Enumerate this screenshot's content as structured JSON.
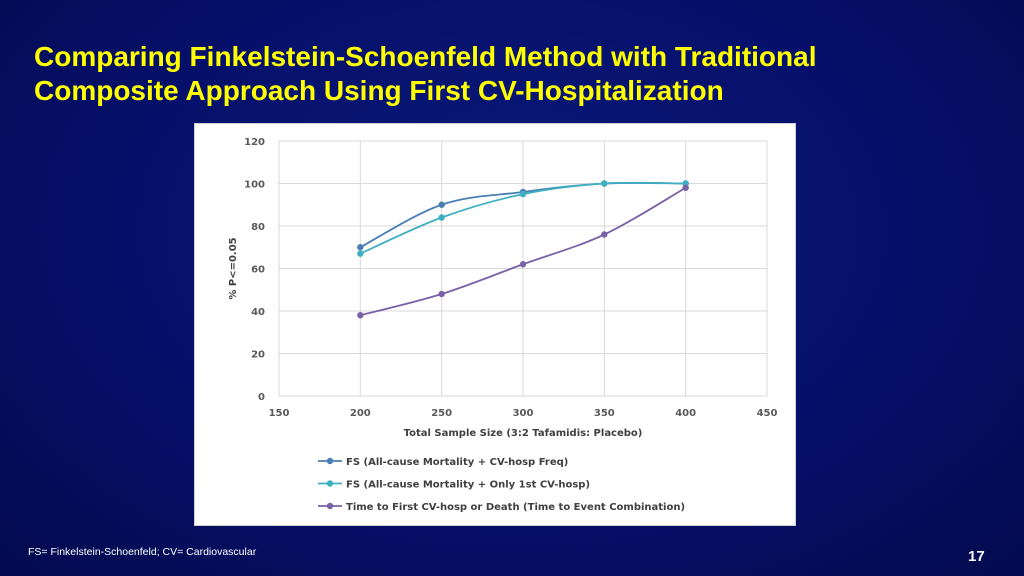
{
  "slide": {
    "title_line1": "Comparing Finkelstein-Schoenfeld Method with Traditional",
    "title_line2": "Composite Approach Using First CV-Hospitalization",
    "footnote": "FS= Finkelstein-Schoenfeld; CV= Cardiovascular",
    "page_number": "17",
    "background_color": "#06106a",
    "title_color": "#ffff00"
  },
  "chart_data": {
    "type": "line",
    "title": "",
    "xlabel": "Total Sample Size (3:2 Tafamidis: Placebo)",
    "ylabel": "% P<=0.05",
    "xlim": [
      150,
      450
    ],
    "ylim": [
      0,
      120
    ],
    "x_ticks": [
      150,
      200,
      250,
      300,
      350,
      400,
      450
    ],
    "y_ticks": [
      0,
      20,
      40,
      60,
      80,
      100,
      120
    ],
    "grid": true,
    "legend_position": "bottom",
    "series": [
      {
        "name": "FS (All-cause Mortality + CV-hosp Freq)",
        "color": "#4a7fb5",
        "x": [
          200,
          250,
          300,
          350,
          400
        ],
        "y": [
          70,
          90,
          96,
          100,
          100
        ]
      },
      {
        "name": "FS (All-cause Mortality + Only 1st CV-hosp)",
        "color": "#3fb0c2",
        "x": [
          200,
          250,
          300,
          350,
          400
        ],
        "y": [
          67,
          84,
          95,
          100,
          100
        ]
      },
      {
        "name": "Time to First CV-hosp or Death (Time to Event Combination)",
        "color": "#7a62a8",
        "x": [
          200,
          250,
          300,
          350,
          400
        ],
        "y": [
          38,
          48,
          62,
          76,
          98
        ]
      }
    ]
  }
}
